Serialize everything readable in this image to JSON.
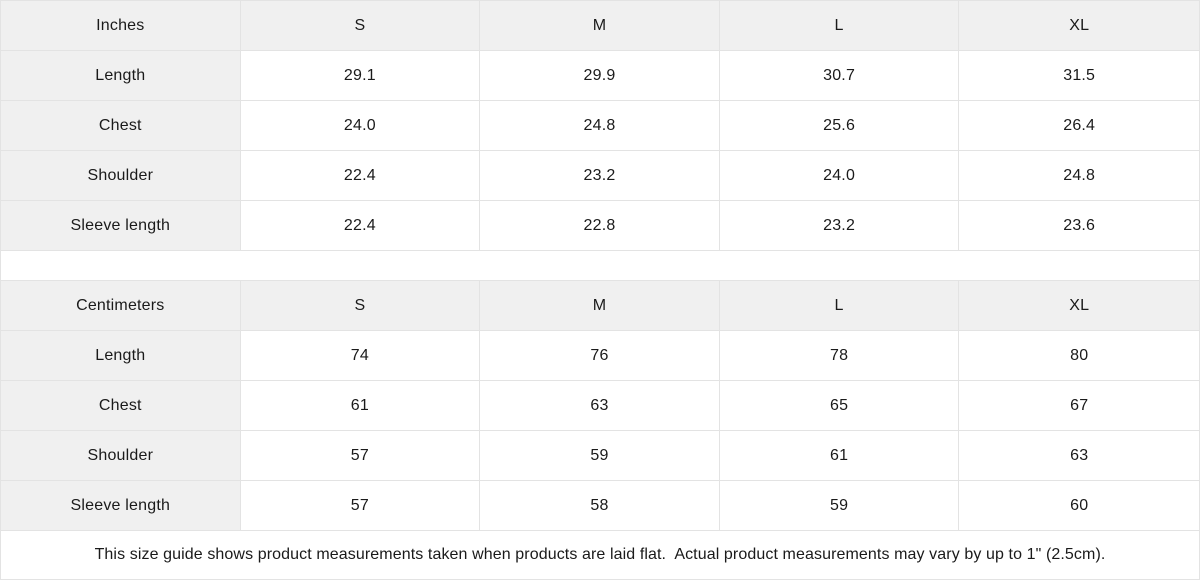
{
  "colors": {
    "header_bg": "#f0f0f0",
    "border": "#e3e3e3",
    "text": "#1a1a1a",
    "background": "#ffffff"
  },
  "tables": [
    {
      "unit": "Inches",
      "sizes": [
        "S",
        "M",
        "L",
        "XL"
      ],
      "rows": [
        {
          "label": "Length",
          "values": [
            "29.1",
            "29.9",
            "30.7",
            "31.5"
          ]
        },
        {
          "label": "Chest",
          "values": [
            "24.0",
            "24.8",
            "25.6",
            "26.4"
          ]
        },
        {
          "label": "Shoulder",
          "values": [
            "22.4",
            "23.2",
            "24.0",
            "24.8"
          ]
        },
        {
          "label": "Sleeve length",
          "values": [
            "22.4",
            "22.8",
            "23.2",
            "23.6"
          ]
        }
      ]
    },
    {
      "unit": "Centimeters",
      "sizes": [
        "S",
        "M",
        "L",
        "XL"
      ],
      "rows": [
        {
          "label": "Length",
          "values": [
            "74",
            "76",
            "78",
            "80"
          ]
        },
        {
          "label": "Chest",
          "values": [
            "61",
            "63",
            "65",
            "67"
          ]
        },
        {
          "label": "Shoulder",
          "values": [
            "57",
            "59",
            "61",
            "63"
          ]
        },
        {
          "label": "Sleeve length",
          "values": [
            "57",
            "58",
            "59",
            "60"
          ]
        }
      ]
    }
  ],
  "footnote": "This size guide shows product measurements taken when products are laid flat.  Actual product measurements may vary by up to 1\" (2.5cm)."
}
